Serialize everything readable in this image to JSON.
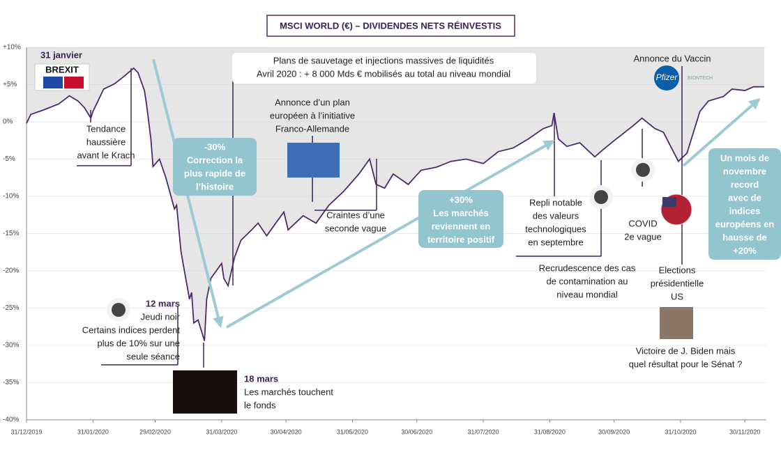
{
  "chart_data": {
    "type": "line",
    "title": "MSCI WORLD (€) – DIVIDENDES NETS RÉINVESTIS",
    "x": [
      "2019-12-31",
      "2020-01-02",
      "2020-01-08",
      "2020-01-15",
      "2020-01-20",
      "2020-01-24",
      "2020-01-27",
      "2020-01-30",
      "2020-01-31",
      "2020-02-05",
      "2020-02-10",
      "2020-02-14",
      "2020-02-19",
      "2020-02-21",
      "2020-02-24",
      "2020-02-25",
      "2020-02-27",
      "2020-02-28",
      "2020-03-02",
      "2020-03-05",
      "2020-03-09",
      "2020-03-10",
      "2020-03-12",
      "2020-03-13",
      "2020-03-16",
      "2020-03-17",
      "2020-03-18",
      "2020-03-20",
      "2020-03-23",
      "2020-03-24",
      "2020-03-26",
      "2020-03-31",
      "2020-04-01",
      "2020-04-03",
      "2020-04-06",
      "2020-04-09",
      "2020-04-14",
      "2020-04-17",
      "2020-04-21",
      "2020-04-29",
      "2020-05-01",
      "2020-05-08",
      "2020-05-14",
      "2020-05-20",
      "2020-05-27",
      "2020-06-03",
      "2020-06-08",
      "2020-06-11",
      "2020-06-15",
      "2020-06-19",
      "2020-06-26",
      "2020-07-02",
      "2020-07-09",
      "2020-07-16",
      "2020-07-23",
      "2020-07-31",
      "2020-08-07",
      "2020-08-14",
      "2020-08-21",
      "2020-08-28",
      "2020-09-01",
      "2020-09-02",
      "2020-09-04",
      "2020-09-08",
      "2020-09-14",
      "2020-09-21",
      "2020-09-25",
      "2020-10-01",
      "2020-10-09",
      "2020-10-13",
      "2020-10-19",
      "2020-10-23",
      "2020-10-28",
      "2020-10-30",
      "2020-11-03",
      "2020-11-06",
      "2020-11-09",
      "2020-11-13",
      "2020-11-20",
      "2020-11-24",
      "2020-11-30",
      "2020-12-04",
      "2020-12-09"
    ],
    "series": [
      {
        "color": "#4b2a6b",
        "values": [
          -0.2,
          1,
          1.6,
          2.4,
          3.5,
          2.8,
          1.9,
          0.5,
          1.4,
          4.4,
          5.1,
          6,
          7.2,
          6.6,
          4.2,
          2.3,
          -2.3,
          -6,
          -5,
          -7.5,
          -11.7,
          -11.2,
          -17.3,
          -19,
          -23.8,
          -22.9,
          -27,
          -26.6,
          -29.4,
          -23.8,
          -21,
          -19,
          -21,
          -22,
          -18.2,
          -15.9,
          -14.5,
          -13.6,
          -15.3,
          -12.1,
          -14.5,
          -12.6,
          -13.6,
          -11.2,
          -9.3,
          -7,
          -5,
          -8.4,
          -8.9,
          -7,
          -8.4,
          -6.5,
          -6.1,
          -5.3,
          -5,
          -5.6,
          -4,
          -3.5,
          -2.3,
          -0.9,
          -0.5,
          1.2,
          -2.3,
          -3.3,
          -2.8,
          -4.7,
          -3.7,
          -2.3,
          -0.5,
          0.5,
          -0.9,
          -1.4,
          -4.2,
          -5.3,
          -4.2,
          -1.4,
          1.4,
          2.8,
          3.4,
          4.4,
          4.2,
          4.7,
          4.7
        ]
      }
    ],
    "xlim": [
      "2019-12-31",
      "2020-12-10"
    ],
    "xticks": [
      {
        "value": "2019-12-31",
        "label": "31/12/2019"
      },
      {
        "value": "2020-01-31",
        "label": "31/01/2020"
      },
      {
        "value": "2020-02-29",
        "label": "29/02/2020"
      },
      {
        "value": "2020-03-31",
        "label": "31/03/2020"
      },
      {
        "value": "2020-04-30",
        "label": "30/04/2020"
      },
      {
        "value": "2020-05-31",
        "label": "31/05/2020"
      },
      {
        "value": "2020-06-30",
        "label": "30/06/2020"
      },
      {
        "value": "2020-07-31",
        "label": "31/07/2020"
      },
      {
        "value": "2020-08-31",
        "label": "31/08/2020"
      },
      {
        "value": "2020-09-30",
        "label": "30/09/2020"
      },
      {
        "value": "2020-10-31",
        "label": "31/10/2020"
      },
      {
        "value": "2020-11-30",
        "label": "30/11/2020"
      }
    ],
    "ylim": [
      -40,
      10
    ],
    "yticks": [
      {
        "value": 10,
        "label": "+10%"
      },
      {
        "value": 5,
        "label": "+5%"
      },
      {
        "value": 0,
        "label": "0%"
      },
      {
        "value": -5,
        "label": "-5%"
      },
      {
        "value": -10,
        "label": "-10%"
      },
      {
        "value": -15,
        "label": "-15%"
      },
      {
        "value": -20,
        "label": "-20%"
      },
      {
        "value": -25,
        "label": "-25%"
      },
      {
        "value": -30,
        "label": "-30%"
      },
      {
        "value": -35,
        "label": "-35%"
      },
      {
        "value": -40,
        "label": "-40%"
      }
    ],
    "grid": true,
    "annotations": [
      [
        "31 janvier"
      ],
      [
        "Tendance",
        "haussière",
        "avant le Krach"
      ],
      [
        "-30%",
        "Correction la",
        "plus rapide de",
        "l’histoire"
      ],
      [
        "12 mars",
        "Jeudi noir",
        "Certains indices perdent",
        "plus de 10% sur une",
        "seule séance"
      ],
      [
        "18 mars",
        "Les marchés touchent",
        "le fonds"
      ],
      [
        "Plans de sauvetage et injections massives de liquidités",
        "Avril 2020 : + 8 000 Mds € mobilisés au total au niveau mondial"
      ],
      [
        "Annonce d’un plan",
        "européen à l’initiative",
        "Franco-Allemande"
      ],
      [
        "Craintes d’une",
        "seconde vague"
      ],
      [
        "+30%",
        "Les marchés",
        "reviennent en",
        "territoire positif"
      ],
      [
        "Repli notable",
        "des valeurs",
        "technologiques",
        "en septembre"
      ],
      [
        "Recrudescence des cas",
        "de contamination au",
        "niveau mondial"
      ],
      [
        "Annonce du Vaccin"
      ],
      [
        "COVID",
        "2e vague"
      ],
      [
        "Elections",
        "présidentielle",
        "US"
      ],
      [
        "Victoire de J. Biden mais",
        "quel résultat pour le Sénat ?"
      ],
      [
        "Un mois de",
        "novembre",
        "record",
        "avec de",
        "indices",
        "européens en",
        "hausse de",
        "+20%"
      ]
    ],
    "icons": [
      "BREXIT",
      "Pfizer",
      "BIONTECH"
    ]
  }
}
